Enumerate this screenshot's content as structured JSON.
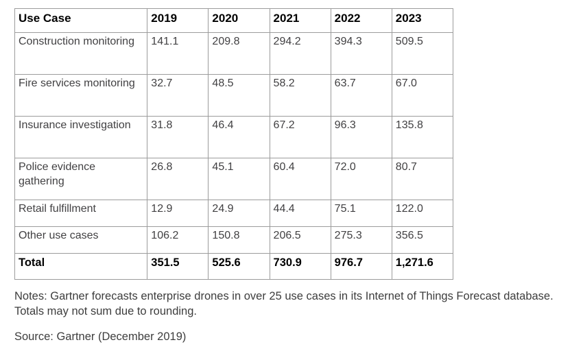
{
  "chart_data": {
    "type": "table",
    "columns": [
      "Use Case",
      "2019",
      "2020",
      "2021",
      "2022",
      "2023"
    ],
    "rows": [
      {
        "label": "Construction monitoring",
        "values": [
          "141.1",
          "209.8",
          "294.2",
          "394.3",
          "509.5"
        ]
      },
      {
        "label": "Fire services monitoring",
        "values": [
          "32.7",
          "48.5",
          "58.2",
          "63.7",
          "67.0"
        ]
      },
      {
        "label": "Insurance investigation",
        "values": [
          "31.8",
          "46.4",
          "67.2",
          "96.3",
          "135.8"
        ]
      },
      {
        "label": "Police evidence gathering",
        "values": [
          "26.8",
          "45.1",
          "60.4",
          "72.0",
          "80.7"
        ]
      },
      {
        "label": "Retail fulfillment",
        "values": [
          "12.9",
          "24.9",
          "44.4",
          "75.1",
          "122.0"
        ]
      },
      {
        "label": "Other use cases",
        "values": [
          "106.2",
          "150.8",
          "206.5",
          "275.3",
          "356.5"
        ]
      }
    ],
    "total_row": {
      "label": "Total",
      "values": [
        "351.5",
        "525.6",
        "730.9",
        "976.7",
        "1,271.6"
      ]
    }
  },
  "notes": "Notes: Gartner forecasts enterprise drones in over 25 use cases in its Internet of Things Forecast database. Totals may not sum due to rounding.",
  "source": "Source: Gartner (December 2019)",
  "colors": {
    "outer_border": "#4d4d4d",
    "inner_border": "#9b9b9b",
    "body_text": "#414042",
    "heading_text": "#000000",
    "background": "#ffffff"
  }
}
